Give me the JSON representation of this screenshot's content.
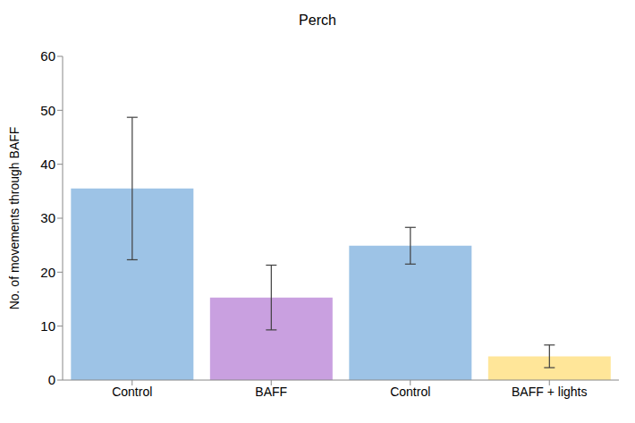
{
  "chart_data": {
    "type": "bar",
    "title": "Perch",
    "y_label": "No. of movements through BAFF",
    "categories": [
      "Control",
      "BAFF",
      "Control",
      "BAFF + lights"
    ],
    "values": [
      35.5,
      15.3,
      24.9,
      4.4
    ],
    "errors": [
      13.2,
      6.0,
      3.4,
      2.1
    ],
    "colors": [
      "#9dc3e6",
      "#c9a0e0",
      "#9dc3e6",
      "#ffe699"
    ],
    "ylim": [
      0,
      60
    ],
    "yticks": [
      0,
      10,
      20,
      30,
      40,
      50,
      60
    ],
    "grid": false,
    "data_labels": false
  }
}
